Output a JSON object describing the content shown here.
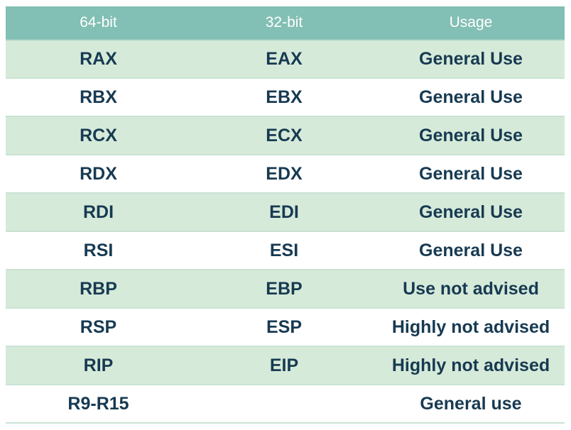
{
  "table": {
    "headers": [
      "64-bit",
      "32-bit",
      "Usage"
    ],
    "rows": [
      [
        "RAX",
        "EAX",
        "General Use"
      ],
      [
        "RBX",
        "EBX",
        "General Use"
      ],
      [
        "RCX",
        "ECX",
        "General Use"
      ],
      [
        "RDX",
        "EDX",
        "General Use"
      ],
      [
        "RDI",
        "EDI",
        "General Use"
      ],
      [
        "RSI",
        "ESI",
        "General Use"
      ],
      [
        "RBP",
        "EBP",
        "Use not advised"
      ],
      [
        "RSP",
        "ESP",
        "Highly not advised"
      ],
      [
        "RIP",
        "EIP",
        "Highly not advised"
      ],
      [
        "R9-R15",
        "",
        "General use"
      ]
    ]
  },
  "colors": {
    "header_bg": "#82bfb4",
    "row_alt_bg": "#d6ead9",
    "text": "#173a52"
  }
}
